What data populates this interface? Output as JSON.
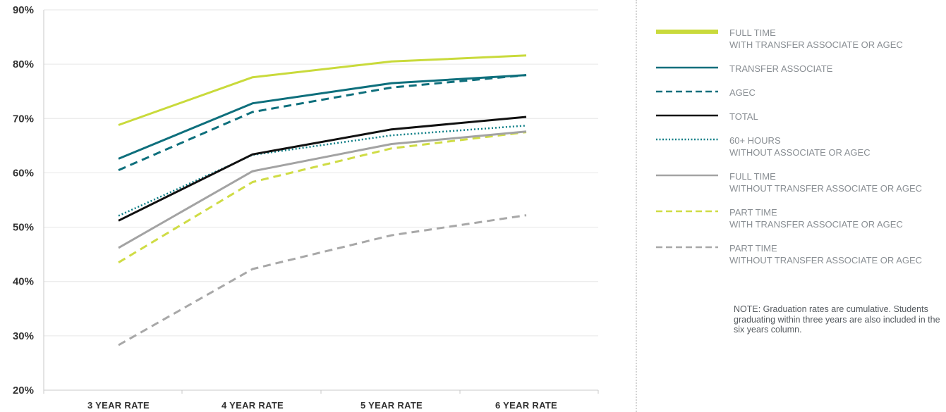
{
  "chart_data": {
    "type": "line",
    "categories": [
      "3 YEAR RATE",
      "4 YEAR RATE",
      "5 YEAR RATE",
      "6 YEAR RATE"
    ],
    "ylim": [
      20,
      90
    ],
    "yticks": [
      "20%",
      "30%",
      "40%",
      "50%",
      "60%",
      "70%",
      "80%",
      "90%"
    ],
    "ytick_values": [
      20,
      30,
      40,
      50,
      60,
      70,
      80,
      90
    ],
    "grid": true,
    "legend_position": "right",
    "series": [
      {
        "name": "FULL TIME",
        "name_line2": "WITH TRANSFER ASSOCIATE OR AGEC",
        "values": [
          68.8,
          77.6,
          80.5,
          81.6
        ],
        "color": "#c9da3b",
        "style": "solid",
        "width": 3,
        "legend_width": 6
      },
      {
        "name": "TRANSFER ASSOCIATE",
        "name_line2": "",
        "values": [
          62.6,
          72.8,
          76.5,
          78.0
        ],
        "color": "#0e6f7c",
        "style": "solid",
        "width": 3,
        "legend_width": 2.5
      },
      {
        "name": "AGEC",
        "name_line2": "",
        "values": [
          60.5,
          71.2,
          75.7,
          78.0
        ],
        "color": "#0e6f7c",
        "style": "dashed",
        "width": 3,
        "legend_width": 2.5
      },
      {
        "name": "TOTAL",
        "name_line2": "",
        "values": [
          51.2,
          63.4,
          68.0,
          70.3
        ],
        "color": "#111111",
        "style": "solid",
        "width": 3,
        "legend_width": 2.5
      },
      {
        "name": "60+ HOURS",
        "name_line2": "WITHOUT ASSOCIATE OR AGEC",
        "values": [
          52.1,
          63.3,
          66.9,
          68.7
        ],
        "color": "#0e7f87",
        "style": "dotted",
        "width": 2.5,
        "legend_width": 2.5
      },
      {
        "name": "FULL TIME",
        "name_line2": "WITHOUT TRANSFER ASSOCIATE OR AGEC",
        "values": [
          46.2,
          60.3,
          65.3,
          67.6
        ],
        "color": "#a3a3a3",
        "style": "solid",
        "width": 3,
        "legend_width": 2.5
      },
      {
        "name": "PART TIME",
        "name_line2": "WITH TRANSFER ASSOCIATE OR AGEC",
        "values": [
          43.5,
          58.3,
          64.5,
          67.5
        ],
        "color": "#cfdc45",
        "style": "dashed",
        "width": 3,
        "legend_width": 2.5
      },
      {
        "name": "PART TIME",
        "name_line2": "WITHOUT TRANSFER ASSOCIATE OR AGEC",
        "values": [
          28.3,
          42.3,
          48.5,
          52.2
        ],
        "color": "#a8a8a8",
        "style": "dashed",
        "width": 3,
        "legend_width": 2.5
      }
    ],
    "note": "NOTE: Graduation rates are cumulative. Students graduating within three years are also included in the six years column."
  }
}
